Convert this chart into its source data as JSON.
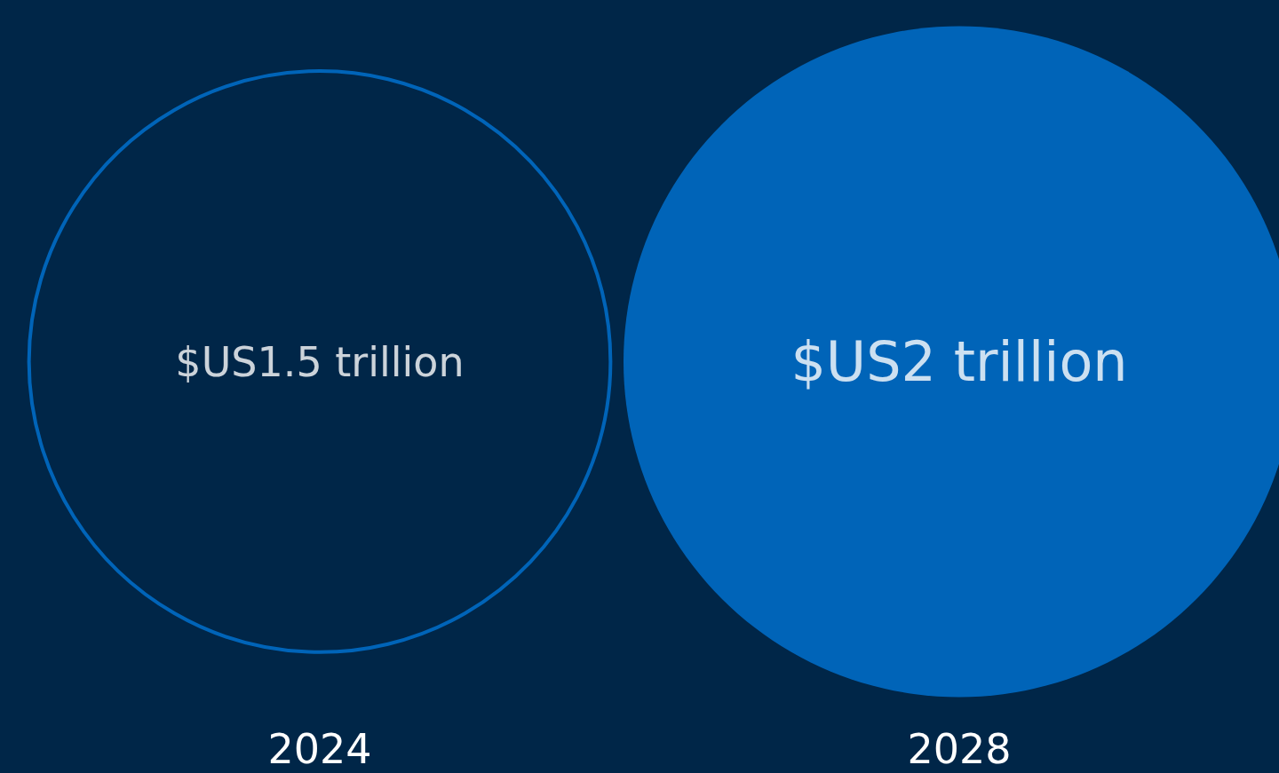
{
  "chart_data": {
    "type": "other",
    "categories": [
      "2024",
      "2028"
    ],
    "values": [
      1.5,
      2
    ],
    "value_labels": [
      "$US1.5 trillion",
      "$US2 trillion"
    ],
    "colors": [
      "#0074d4",
      "#0074d4"
    ]
  }
}
